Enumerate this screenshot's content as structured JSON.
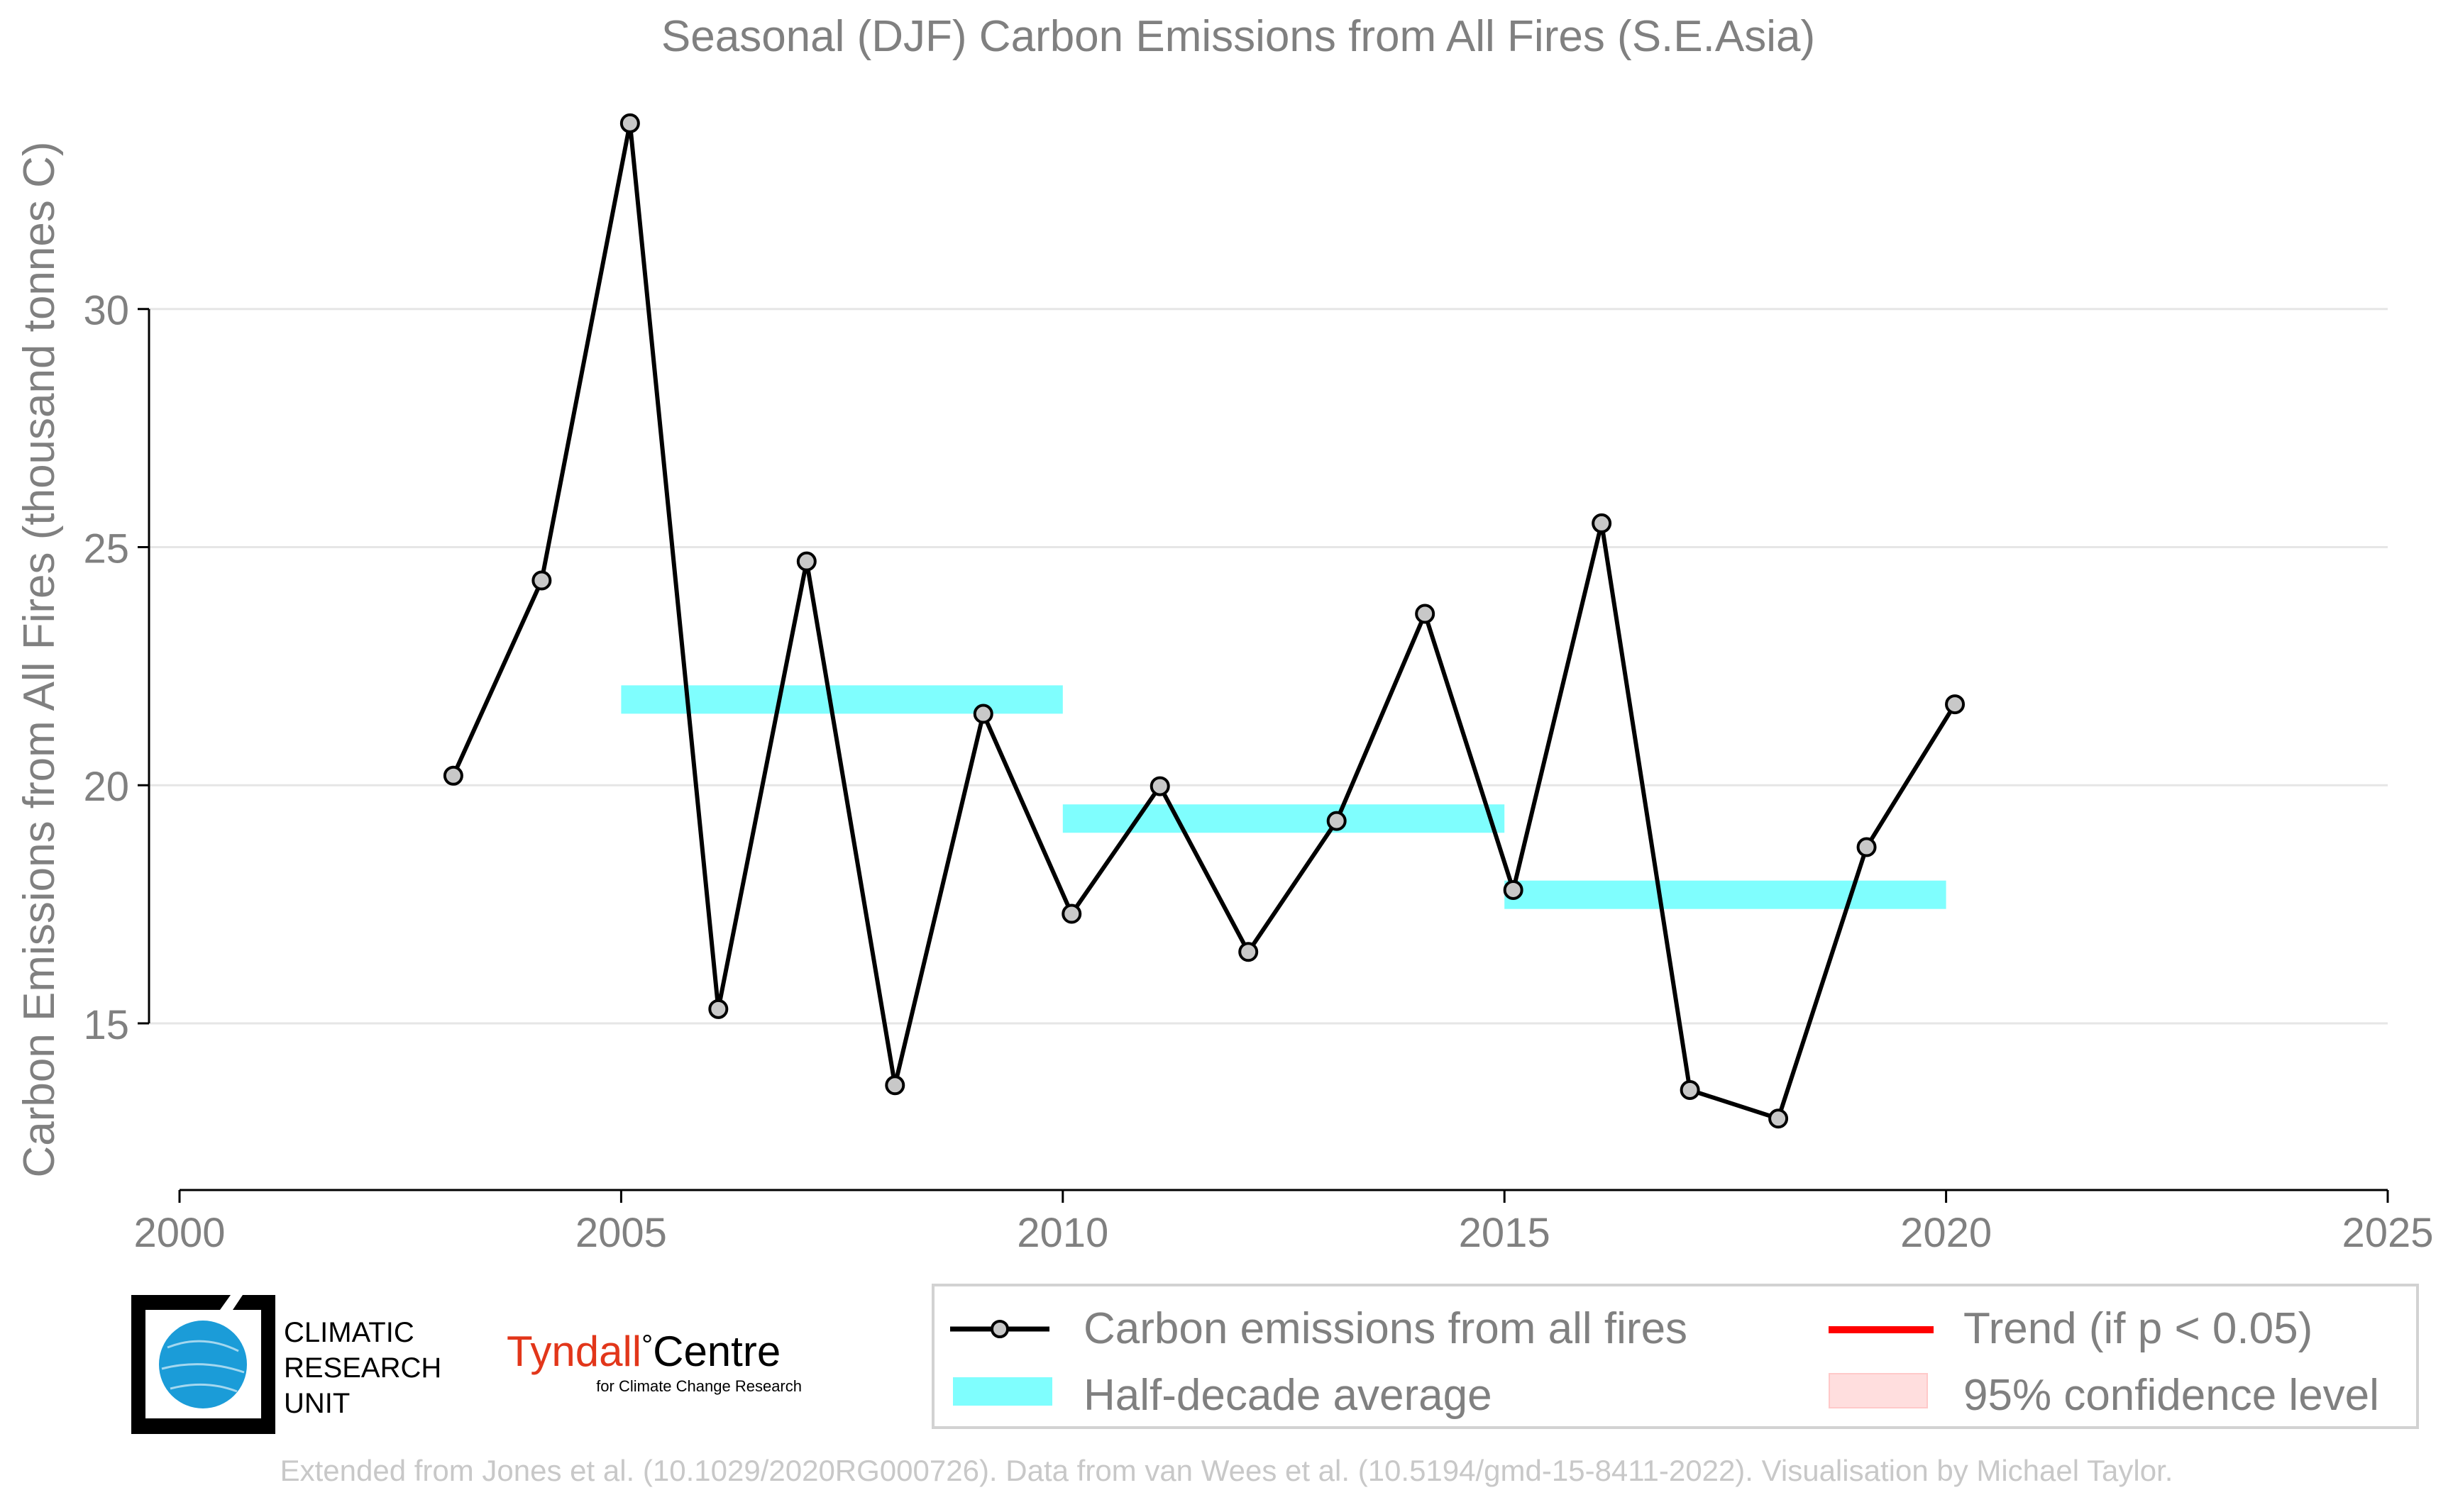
{
  "chart_data": {
    "type": "line",
    "title": "Seasonal (DJF) Carbon Emissions from All Fires (S.E.Asia)",
    "xlabel": "",
    "ylabel": "Carbon Emissions from All Fires (thousand tonnes C)",
    "xlim": [
      2000,
      2025
    ],
    "ylim": [
      11.5,
      35
    ],
    "xticks": [
      2000,
      2005,
      2010,
      2015,
      2020,
      2025
    ],
    "yticks": [
      15,
      20,
      25,
      30
    ],
    "grid": "horizontal",
    "series": [
      {
        "name": "Carbon emissions from all fires",
        "color": "#000000",
        "marker_fill": "#c8c8c8",
        "x": [
          2003.1,
          2004.1,
          2005.1,
          2006.1,
          2007.1,
          2008.1,
          2009.1,
          2010.1,
          2011.1,
          2012.1,
          2013.1,
          2014.1,
          2015.1,
          2016.1,
          2017.1,
          2018.1,
          2019.1,
          2020.1
        ],
        "y": [
          20.2,
          24.3,
          33.9,
          15.3,
          24.7,
          13.7,
          21.5,
          17.3,
          19.98,
          16.5,
          19.25,
          23.6,
          17.8,
          25.5,
          13.6,
          13.0,
          18.7,
          21.7
        ]
      }
    ],
    "half_decade_average": {
      "name": "Half-decade average",
      "color": "#7ffefe",
      "segments": [
        {
          "x0": 2005,
          "x1": 2010,
          "y": 21.8
        },
        {
          "x0": 2010,
          "x1": 2015,
          "y": 19.3
        },
        {
          "x0": 2015,
          "x1": 2020,
          "y": 17.7
        }
      ]
    },
    "legend": {
      "placement": "bottom-right",
      "entries": [
        {
          "label": "Carbon emissions from all fires",
          "kind": "line-marker",
          "color": "#000000"
        },
        {
          "label": "Trend (if p < 0.05)",
          "kind": "line",
          "color": "#ff0000"
        },
        {
          "label": "Half-decade average",
          "kind": "patch",
          "color": "#7ffefe"
        },
        {
          "label": "95% confidence level",
          "kind": "patch",
          "color": "#ffdede"
        }
      ]
    }
  },
  "logos": {
    "cru_lines": [
      "CLIMATIC",
      "RESEARCH",
      "UNIT"
    ],
    "tyndall_name": "Tyndall",
    "tyndall_degree": "°",
    "tyndall_centre": "Centre",
    "tyndall_sub": "for Climate Change Research",
    "tyndall_color": "#e2361a",
    "cru_globe_color": "#1b9cd8"
  },
  "footnote": "Extended from Jones et al. (10.1029/2020RG000726). Data from van Wees et al. (10.5194/gmd-15-8411-2022). Visualisation by Michael Taylor."
}
